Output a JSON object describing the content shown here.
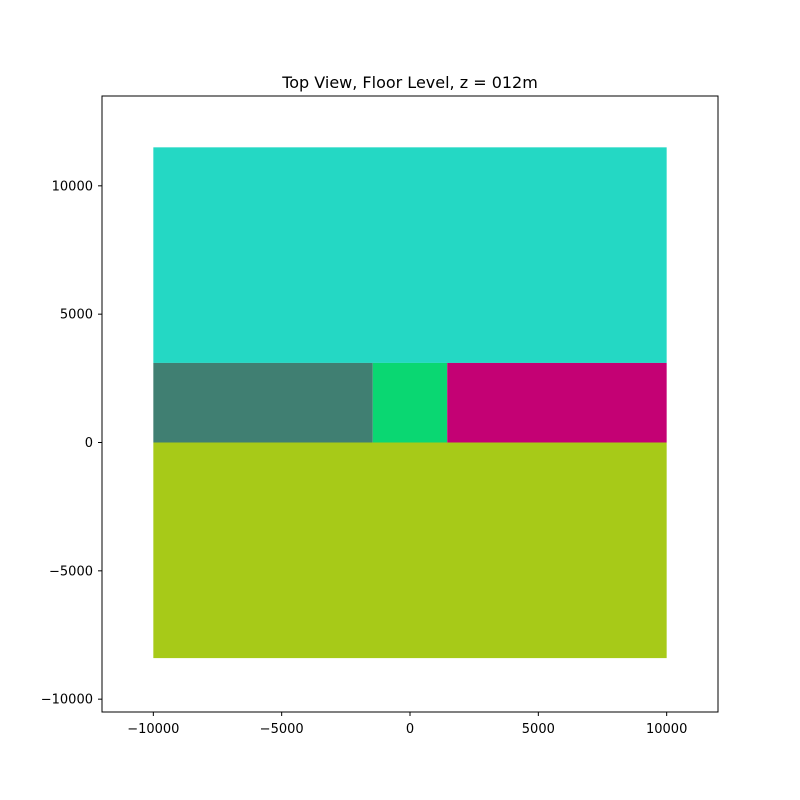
{
  "chart_data": {
    "type": "heatmap",
    "title": "Top View, Floor Level, z = 012m",
    "xlabel": "",
    "ylabel": "",
    "xlim": [
      -12000,
      12000
    ],
    "ylim": [
      -10500,
      13500
    ],
    "xticks": [
      -10000,
      -5000,
      0,
      5000,
      10000
    ],
    "yticks": [
      -10000,
      -5000,
      0,
      5000,
      10000
    ],
    "xtick_labels": [
      "−10000",
      "−5000",
      "0",
      "5000",
      "10000"
    ],
    "ytick_labels": [
      "−10000",
      "−5000",
      "0",
      "5000",
      "10000"
    ],
    "grid": false,
    "regions": [
      {
        "x0": -10000,
        "x1": 10000,
        "y0": 3100,
        "y1": 11500,
        "color": "#24d8c4"
      },
      {
        "x0": -10000,
        "x1": -1450,
        "y0": 0,
        "y1": 3100,
        "color": "#407f72"
      },
      {
        "x0": -1450,
        "x1": 1450,
        "y0": 0,
        "y1": 3100,
        "color": "#0ad772"
      },
      {
        "x0": 1450,
        "x1": 10000,
        "y0": 0,
        "y1": 3100,
        "color": "#c40174"
      },
      {
        "x0": -10000,
        "x1": 10000,
        "y0": -8400,
        "y1": 0,
        "color": "#a7ca18"
      }
    ]
  }
}
